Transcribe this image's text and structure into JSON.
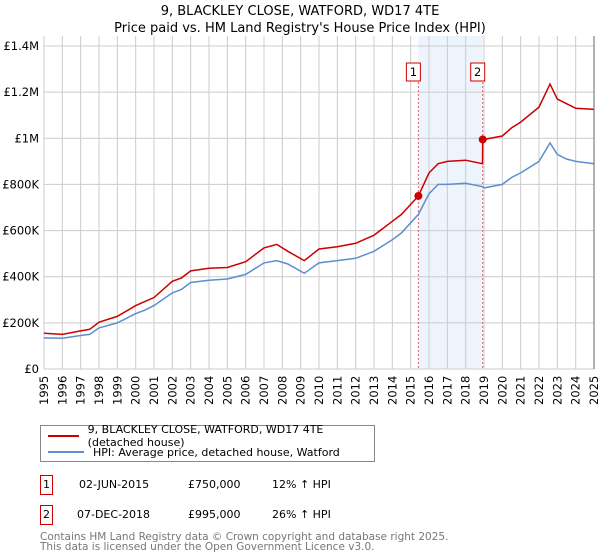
{
  "chart_data": {
    "type": "line",
    "title": "9, BLACKLEY CLOSE, WATFORD, WD17 4TE",
    "subtitle": "Price paid vs. HM Land Registry's House Price Index (HPI)",
    "xlim": [
      1995,
      2025
    ],
    "ylim": [
      0,
      1400000
    ],
    "yticks": [
      {
        "v": 0,
        "label": "£0"
      },
      {
        "v": 200000,
        "label": "£200K"
      },
      {
        "v": 400000,
        "label": "£400K"
      },
      {
        "v": 600000,
        "label": "£600K"
      },
      {
        "v": 800000,
        "label": "£800K"
      },
      {
        "v": 1000000,
        "label": "£1M"
      },
      {
        "v": 1200000,
        "label": "£1.2M"
      },
      {
        "v": 1400000,
        "label": "£1.4M"
      }
    ],
    "xticks": [
      "1995",
      "1996",
      "1997",
      "1998",
      "1999",
      "2000",
      "2001",
      "2002",
      "2003",
      "2004",
      "2005",
      "2006",
      "2007",
      "2008",
      "2009",
      "2010",
      "2011",
      "2012",
      "2013",
      "2014",
      "2015",
      "2016",
      "2017",
      "2018",
      "2019",
      "2020",
      "2021",
      "2022",
      "2023",
      "2024",
      "2025"
    ],
    "grid": true,
    "shaded_range": [
      2015.42,
      2018.93
    ],
    "series": [
      {
        "name": "9, BLACKLEY CLOSE, WATFORD, WD17 4TE (detached house)",
        "color": "#cc0000",
        "x": [
          1995,
          1996,
          1997,
          1997.5,
          1998,
          1999,
          2000,
          2000.5,
          2001,
          2002,
          2002.5,
          2003,
          2004,
          2005,
          2006,
          2007,
          2007.7,
          2008.3,
          2009.2,
          2010,
          2011,
          2012,
          2013,
          2014,
          2014.5,
          2015.42,
          2016,
          2016.5,
          2017,
          2018,
          2018.92,
          2018.93,
          2019,
          2020,
          2020.5,
          2021,
          2022,
          2022.6,
          2023,
          2023.5,
          2024,
          2025
        ],
        "y": [
          155000,
          150000,
          165000,
          172000,
          203000,
          228000,
          275000,
          292000,
          310000,
          380000,
          395000,
          425000,
          437000,
          440000,
          465000,
          525000,
          540000,
          510000,
          470000,
          520000,
          530000,
          545000,
          580000,
          640000,
          670000,
          750000,
          850000,
          890000,
          900000,
          905000,
          890000,
          995000,
          995000,
          1010000,
          1045000,
          1070000,
          1135000,
          1235000,
          1170000,
          1150000,
          1130000,
          1125000
        ]
      },
      {
        "name": "HPI: Average price, detached house, Watford",
        "color": "#5b8fd0",
        "x": [
          1995,
          1996,
          1997,
          1997.5,
          1998,
          1999,
          2000,
          2000.5,
          2001,
          2002,
          2002.5,
          2003,
          2004,
          2005,
          2006,
          2007,
          2007.7,
          2008.3,
          2009.2,
          2010,
          2011,
          2012,
          2013,
          2014,
          2014.5,
          2015.42,
          2016,
          2016.5,
          2017,
          2018,
          2018.93,
          2019,
          2020,
          2020.5,
          2021,
          2022,
          2022.6,
          2023,
          2023.5,
          2024,
          2025
        ],
        "y": [
          135000,
          133000,
          145000,
          150000,
          178000,
          200000,
          240000,
          255000,
          275000,
          330000,
          345000,
          375000,
          385000,
          390000,
          410000,
          460000,
          470000,
          455000,
          415000,
          460000,
          470000,
          480000,
          510000,
          560000,
          590000,
          670000,
          760000,
          800000,
          800000,
          805000,
          790000,
          785000,
          800000,
          830000,
          850000,
          900000,
          980000,
          930000,
          910000,
          900000,
          890000
        ]
      }
    ],
    "sales": [
      {
        "label": "1",
        "x": 2015.42,
        "y": 750000,
        "date": "02-JUN-2015",
        "price": "£750,000",
        "hpi": "12% ↑ HPI"
      },
      {
        "label": "2",
        "x": 2018.93,
        "y": 995000,
        "date": "07-DEC-2018",
        "price": "£995,000",
        "hpi": "26% ↑ HPI"
      }
    ],
    "legend_position": "below"
  },
  "footer": {
    "line1": "Contains HM Land Registry data © Crown copyright and database right 2025.",
    "line2": "This data is licensed under the Open Government Licence v3.0."
  }
}
